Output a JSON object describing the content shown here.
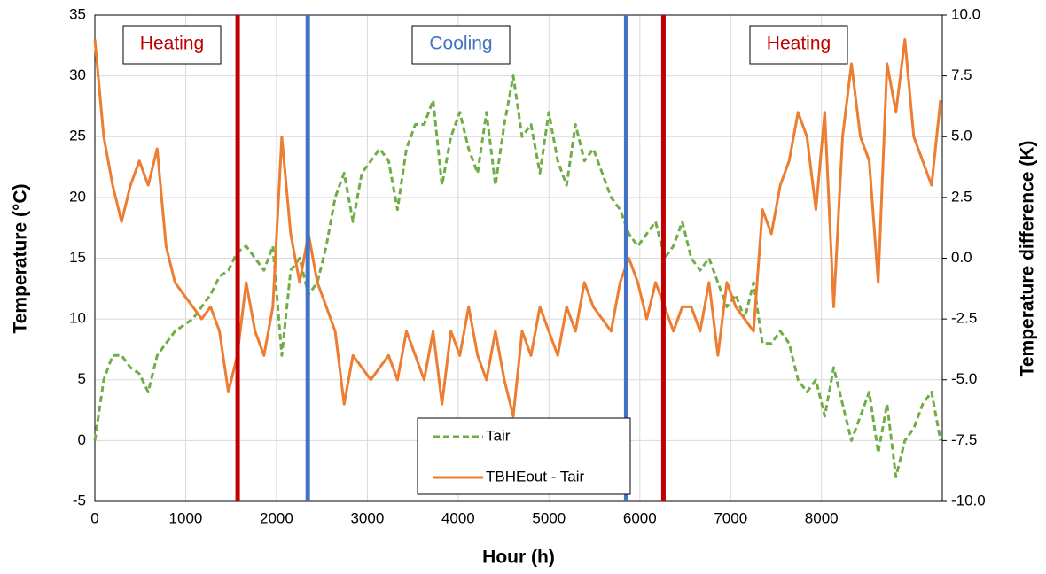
{
  "chart_data": {
    "type": "line",
    "xlabel": "Hour (h)",
    "ylabel": "Temperature (°C)",
    "y2label": "Temperature difference (K)",
    "grid": true,
    "legend": "lower center",
    "xlim": [
      0,
      9330
    ],
    "xticks": [
      0,
      1000,
      2000,
      3000,
      4000,
      5000,
      6000,
      7000,
      8000
    ],
    "ylim": [
      -5,
      35
    ],
    "yticks": [
      -5,
      0,
      5,
      10,
      15,
      20,
      25,
      30,
      35
    ],
    "y2lim": [
      -10,
      10
    ],
    "y2ticks": [
      {
        "value": -10,
        "label": "-10.0"
      },
      {
        "value": -7.5,
        "label": "-7.5"
      },
      {
        "value": -5,
        "label": "-5.0"
      },
      {
        "value": -2.5,
        "label": "-2.5"
      },
      {
        "value": 0,
        "label": "0.0"
      },
      {
        "value": 2.5,
        "label": "2.5"
      },
      {
        "value": 5,
        "label": "5.0"
      },
      {
        "value": 7.5,
        "label": "7.5"
      },
      {
        "value": 10,
        "label": "10.0"
      }
    ],
    "x": [
      0,
      98,
      196,
      294,
      392,
      490,
      588,
      686,
      784,
      882,
      980,
      1078,
      1176,
      1274,
      1372,
      1470,
      1568,
      1666,
      1764,
      1862,
      1960,
      2058,
      2156,
      2254,
      2352,
      2450,
      2548,
      2646,
      2744,
      2842,
      2940,
      3038,
      3136,
      3234,
      3332,
      3430,
      3528,
      3626,
      3724,
      3822,
      3920,
      4018,
      4116,
      4214,
      4312,
      4410,
      4508,
      4606,
      4704,
      4802,
      4900,
      4998,
      5096,
      5194,
      5292,
      5390,
      5488,
      5586,
      5684,
      5782,
      5880,
      5978,
      6076,
      6174,
      6272,
      6370,
      6468,
      6566,
      6664,
      6762,
      6860,
      6958,
      7056,
      7154,
      7252,
      7350,
      7448,
      7546,
      7644,
      7742,
      7840,
      7938,
      8036,
      8134,
      8232,
      8330,
      8428,
      8526,
      8624,
      8722,
      8820,
      8918,
      9016,
      9114,
      9212,
      9310
    ],
    "series": [
      {
        "name": "Tair",
        "color": "#70ad47",
        "style": "dashed",
        "values": [
          0,
          5,
          7,
          7,
          6,
          5.5,
          4,
          7,
          8,
          9,
          9.5,
          10,
          11,
          12,
          13.5,
          14,
          15.5,
          16,
          15,
          14,
          16,
          7,
          14,
          15,
          12,
          13,
          16,
          20,
          22,
          18,
          22,
          23,
          24,
          23,
          19,
          24,
          26,
          26,
          28,
          21,
          25,
          27,
          24,
          22,
          27,
          21,
          26,
          30,
          25,
          26,
          22,
          27,
          23,
          21,
          26,
          23,
          24,
          22,
          20,
          19,
          17,
          16,
          17,
          18,
          15,
          16,
          18,
          15,
          14,
          15,
          13,
          11,
          12,
          10,
          13,
          8,
          8,
          9,
          8,
          5,
          4,
          5,
          2,
          6,
          3,
          0,
          2,
          4,
          -1,
          3,
          -3,
          0,
          1,
          3,
          4,
          0
        ]
      },
      {
        "name": "TBHEout - Tair",
        "color": "#ed7d31",
        "style": "solid",
        "axis": "y2",
        "values": [
          9,
          5,
          3,
          1.5,
          3,
          4,
          3,
          4.5,
          0.5,
          -1,
          -1.5,
          -2,
          -2.5,
          -2,
          -3,
          -5.5,
          -4,
          -1,
          -3,
          -4,
          -2,
          5,
          1,
          -1,
          1,
          -1,
          -2,
          -3,
          -6,
          -4,
          -4.5,
          -5,
          -4.5,
          -4,
          -5,
          -3,
          -4,
          -5,
          -3,
          -6,
          -3,
          -4,
          -2,
          -4,
          -5,
          -3,
          -5,
          -6.5,
          -3,
          -4,
          -2,
          -3,
          -4,
          -2,
          -3,
          -1,
          -2,
          -2.5,
          -3,
          -1,
          0,
          -1,
          -2.5,
          -1,
          -2,
          -3,
          -2,
          -2,
          -3,
          -1,
          -4,
          -1,
          -2,
          -2.5,
          -3,
          2,
          1,
          3,
          4,
          6,
          5,
          2,
          6,
          -2,
          5,
          8,
          5,
          4,
          -1,
          8,
          6,
          9,
          5,
          4,
          3,
          6.5
        ]
      }
    ],
    "vlines": [
      {
        "x": 1572,
        "color": "#c00000"
      },
      {
        "x": 2344,
        "color": "#4472c4"
      },
      {
        "x": 5850,
        "color": "#4472c4"
      },
      {
        "x": 6260,
        "color": "#c00000"
      }
    ],
    "annotations": [
      {
        "text": "Heating",
        "color": "#c00000"
      },
      {
        "text": "Cooling",
        "color": "#4472c4"
      },
      {
        "text": "Heating",
        "color": "#c00000"
      }
    ]
  }
}
